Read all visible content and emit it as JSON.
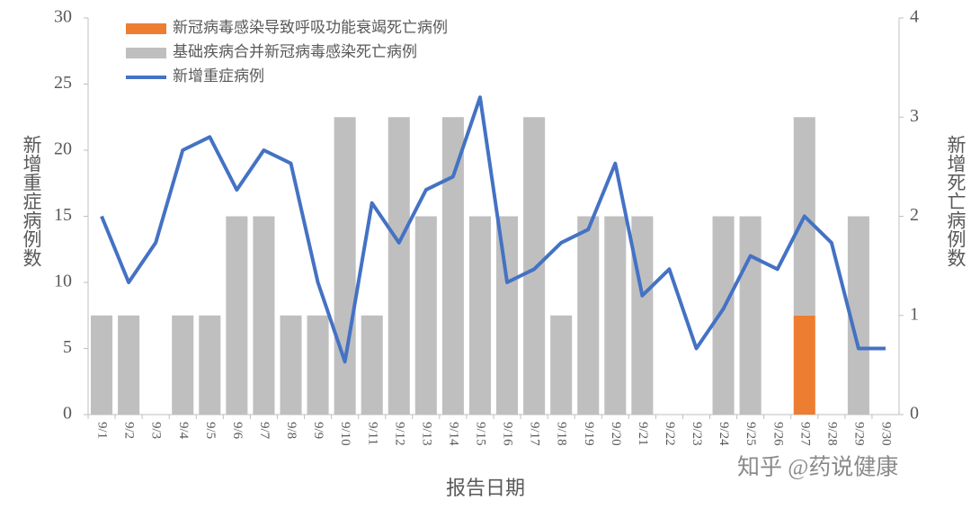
{
  "chart_data": {
    "type": "bar",
    "categories": [
      "9/1",
      "9/2",
      "9/3",
      "9/4",
      "9/5",
      "9/6",
      "9/7",
      "9/8",
      "9/9",
      "9/10",
      "9/11",
      "9/12",
      "9/13",
      "9/14",
      "9/15",
      "9/16",
      "9/17",
      "9/18",
      "9/19",
      "9/20",
      "9/21",
      "9/22",
      "9/23",
      "9/24",
      "9/25",
      "9/26",
      "9/27",
      "9/28",
      "9/29",
      "9/30"
    ],
    "series": [
      {
        "name": "新冠病毒感染导致呼吸功能衰竭死亡病例",
        "type": "bar",
        "axis": "y2",
        "color": "#ed7d31",
        "values": [
          0,
          0,
          0,
          0,
          0,
          0,
          0,
          0,
          0,
          0,
          0,
          0,
          0,
          0,
          0,
          0,
          0,
          0,
          0,
          0,
          0,
          0,
          0,
          0,
          0,
          0,
          1,
          0,
          0,
          0
        ]
      },
      {
        "name": "基础疾病合并新冠病毒感染死亡病例",
        "type": "bar",
        "axis": "y2",
        "color": "#bfbfbf",
        "values": [
          1,
          1,
          0,
          1,
          1,
          2,
          2,
          1,
          1,
          3,
          1,
          3,
          2,
          3,
          2,
          2,
          3,
          1,
          2,
          2,
          2,
          0,
          0,
          2,
          2,
          0,
          2,
          0,
          2,
          0
        ]
      },
      {
        "name": "新增重症病例",
        "type": "line",
        "axis": "y",
        "color": "#4472c4",
        "values": [
          15,
          10,
          13,
          20,
          21,
          17,
          20,
          19,
          10,
          4,
          16,
          13,
          17,
          18,
          24,
          10,
          11,
          13,
          14,
          19,
          9,
          11,
          5,
          8,
          12,
          11,
          15,
          13,
          5,
          5
        ]
      }
    ],
    "ylabel": "新增重症病例数",
    "y2label": "新增死亡病例数",
    "xlabel": "报告日期",
    "ylim": [
      0,
      30
    ],
    "yticks": [
      0,
      5,
      10,
      15,
      20,
      25,
      30
    ],
    "y2lim": [
      0,
      4
    ],
    "y2ticks": [
      0,
      1,
      2,
      3,
      4
    ],
    "grid": false,
    "legend": "upper left",
    "watermark": "知乎 @药说健康"
  }
}
